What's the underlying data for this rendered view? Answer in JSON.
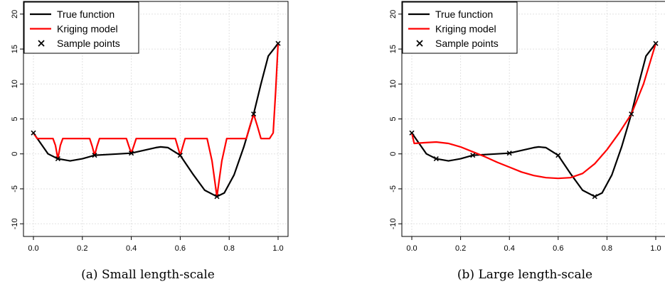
{
  "chart_data": [
    {
      "type": "line",
      "caption": "(a) Small length-scale",
      "xlim": [
        0,
        1
      ],
      "ylim": [
        -11,
        21
      ],
      "xticks": [
        "0.0",
        "0.2",
        "0.4",
        "0.6",
        "0.8",
        "1.0"
      ],
      "yticks": [
        "-10",
        "-5",
        "0",
        "5",
        "10",
        "15",
        "20"
      ],
      "grid": true,
      "legend_position": "top-left",
      "series": [
        {
          "name": "True function",
          "color": "#000000",
          "x": [
            0,
            0.03,
            0.06,
            0.1,
            0.15,
            0.2,
            0.25,
            0.3,
            0.35,
            0.4,
            0.45,
            0.5,
            0.52,
            0.55,
            0.6,
            0.65,
            0.7,
            0.75,
            0.78,
            0.82,
            0.86,
            0.9,
            0.93,
            0.96,
            1.0
          ],
          "y": [
            3.0,
            1.5,
            0.0,
            -0.7,
            -1.0,
            -0.7,
            -0.2,
            -0.1,
            0.0,
            0.1,
            0.5,
            0.9,
            1.0,
            0.9,
            -0.2,
            -2.8,
            -5.2,
            -6.1,
            -5.6,
            -3.0,
            1.0,
            5.7,
            10.0,
            14.0,
            15.8
          ]
        },
        {
          "name": "Kriging model",
          "color": "#ff0000",
          "x": [
            0,
            0.015,
            0.08,
            0.09,
            0.1,
            0.11,
            0.12,
            0.23,
            0.24,
            0.25,
            0.26,
            0.27,
            0.38,
            0.39,
            0.4,
            0.41,
            0.42,
            0.58,
            0.59,
            0.6,
            0.61,
            0.62,
            0.71,
            0.73,
            0.75,
            0.77,
            0.79,
            0.87,
            0.885,
            0.9,
            0.915,
            0.93,
            0.965,
            0.98,
            0.99,
            1.0
          ],
          "y": [
            3.0,
            2.2,
            2.2,
            1.2,
            -0.7,
            1.2,
            2.2,
            2.2,
            1.1,
            -0.2,
            1.1,
            2.2,
            2.2,
            1.1,
            0.1,
            1.1,
            2.2,
            2.2,
            1.0,
            -0.2,
            1.0,
            2.2,
            2.2,
            -1.0,
            -6.1,
            -1.0,
            2.2,
            2.2,
            4.0,
            5.7,
            4.0,
            2.2,
            2.2,
            3.0,
            9.0,
            15.8
          ]
        },
        {
          "name": "Sample points",
          "color": "#000000",
          "marker": "x",
          "x": [
            0.0,
            0.1,
            0.25,
            0.4,
            0.6,
            0.75,
            0.9,
            1.0
          ],
          "y": [
            3.0,
            -0.7,
            -0.2,
            0.1,
            -0.2,
            -6.1,
            5.7,
            15.8
          ]
        }
      ]
    },
    {
      "type": "line",
      "caption": "(b) Large length-scale",
      "xlim": [
        0,
        1
      ],
      "ylim": [
        -11,
        21
      ],
      "xticks": [
        "0.0",
        "0.2",
        "0.4",
        "0.6",
        "0.8",
        "1.0"
      ],
      "yticks": [
        "-10",
        "-5",
        "0",
        "5",
        "10",
        "15",
        "20"
      ],
      "grid": true,
      "legend_position": "top-left",
      "series": [
        {
          "name": "True function",
          "color": "#000000",
          "x": [
            0,
            0.03,
            0.06,
            0.1,
            0.15,
            0.2,
            0.25,
            0.3,
            0.35,
            0.4,
            0.45,
            0.5,
            0.52,
            0.55,
            0.6,
            0.65,
            0.7,
            0.75,
            0.78,
            0.82,
            0.86,
            0.9,
            0.93,
            0.96,
            1.0
          ],
          "y": [
            3.0,
            1.5,
            0.0,
            -0.7,
            -1.0,
            -0.7,
            -0.2,
            -0.1,
            0.0,
            0.1,
            0.5,
            0.9,
            1.0,
            0.9,
            -0.2,
            -2.8,
            -5.2,
            -6.1,
            -5.6,
            -3.0,
            1.0,
            5.7,
            10.0,
            14.0,
            15.8
          ]
        },
        {
          "name": "Kriging model",
          "color": "#ff0000",
          "x": [
            0,
            0.01,
            0.05,
            0.1,
            0.15,
            0.2,
            0.25,
            0.3,
            0.35,
            0.4,
            0.45,
            0.5,
            0.55,
            0.6,
            0.65,
            0.7,
            0.75,
            0.8,
            0.85,
            0.9,
            0.95,
            1.0
          ],
          "y": [
            3.0,
            1.5,
            1.6,
            1.7,
            1.5,
            1.0,
            0.3,
            -0.4,
            -1.2,
            -1.9,
            -2.6,
            -3.1,
            -3.4,
            -3.5,
            -3.4,
            -2.8,
            -1.4,
            0.6,
            3.0,
            5.7,
            10.0,
            15.8
          ]
        },
        {
          "name": "Sample points",
          "color": "#000000",
          "marker": "x",
          "x": [
            0.0,
            0.1,
            0.25,
            0.4,
            0.6,
            0.75,
            0.9,
            1.0
          ],
          "y": [
            3.0,
            -0.7,
            -0.2,
            0.1,
            -0.2,
            -6.1,
            5.7,
            15.8
          ]
        }
      ]
    }
  ]
}
